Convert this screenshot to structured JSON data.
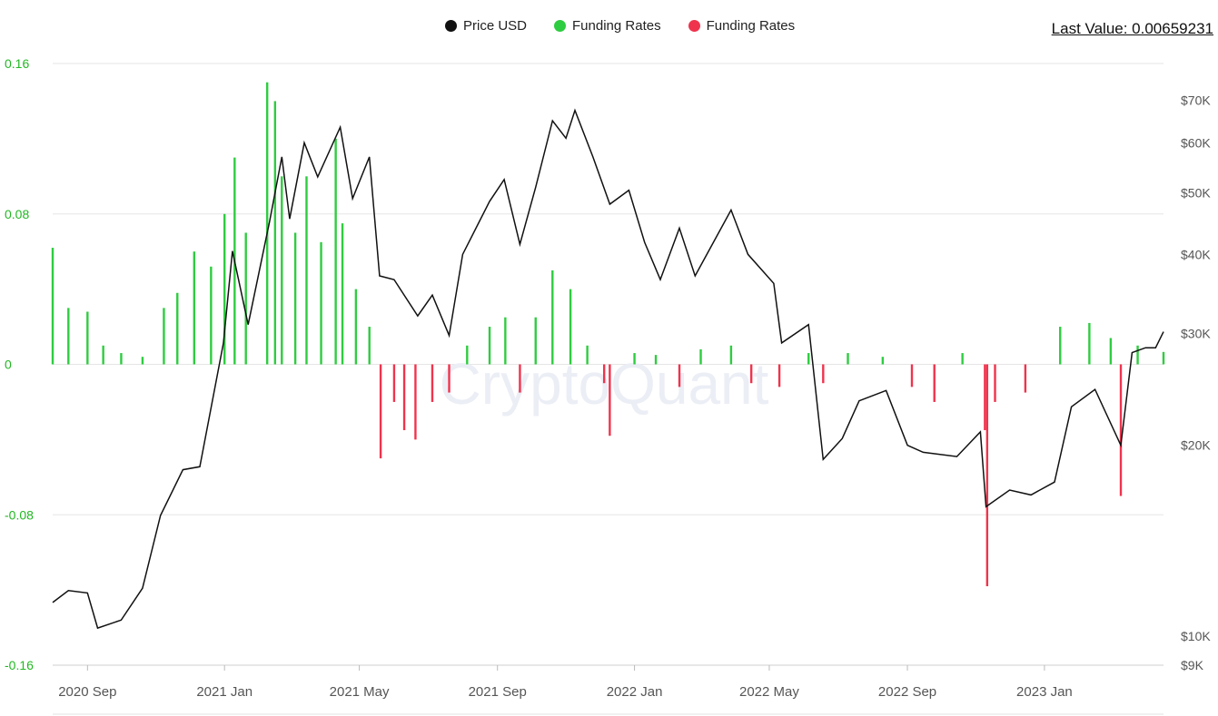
{
  "legend": [
    {
      "label": "Price USD",
      "color": "#111111"
    },
    {
      "label": "Funding Rates",
      "color": "#2ecc40"
    },
    {
      "label": "Funding Rates",
      "color": "#f0334d"
    }
  ],
  "last_value": "Last Value: 0.00659231",
  "chart_data": {
    "type": "bar",
    "title": "",
    "watermark": "CryptoQuant",
    "xlabel": "",
    "ylabel": "",
    "x_ticks": [
      "2020 Sep",
      "2021 Jan",
      "2021 May",
      "2021 Sep",
      "2022 Jan",
      "2022 May",
      "2022 Sep",
      "2023 Jan"
    ],
    "x_range": [
      "2020-08-01",
      "2023-04-17"
    ],
    "y_left": {
      "ticks": [
        "0.16",
        "0.08",
        "0",
        "-0.08",
        "-0.16"
      ],
      "tick_values": [
        0.16,
        0.08,
        0,
        -0.08,
        -0.16
      ],
      "ylim": [
        -0.16,
        0.16
      ]
    },
    "y_right": {
      "scale": "log",
      "ticks": [
        "$70K",
        "$60K",
        "$50K",
        "$40K",
        "$30K",
        "$20K",
        "$10K",
        "$9K"
      ],
      "tick_values": [
        70000,
        60000,
        50000,
        40000,
        30000,
        20000,
        10000,
        9000
      ],
      "ylim": [
        9000,
        80000
      ]
    },
    "grid": true,
    "legend_position": "top",
    "series": [
      {
        "name": "Price USD",
        "type": "line",
        "axis": "right",
        "color": "#111111",
        "points": [
          [
            "2020-08-01",
            11300
          ],
          [
            "2020-08-15",
            11800
          ],
          [
            "2020-09-01",
            11700
          ],
          [
            "2020-09-10",
            10300
          ],
          [
            "2020-10-01",
            10600
          ],
          [
            "2020-10-20",
            11900
          ],
          [
            "2020-11-05",
            15500
          ],
          [
            "2020-11-25",
            18300
          ],
          [
            "2020-12-10",
            18500
          ],
          [
            "2020-12-31",
            29000
          ],
          [
            "2021-01-08",
            40500
          ],
          [
            "2021-01-22",
            31000
          ],
          [
            "2021-02-10",
            45000
          ],
          [
            "2021-02-21",
            57000
          ],
          [
            "2021-02-28",
            45500
          ],
          [
            "2021-03-13",
            60000
          ],
          [
            "2021-03-25",
            53000
          ],
          [
            "2021-04-14",
            63500
          ],
          [
            "2021-04-25",
            49000
          ],
          [
            "2021-05-10",
            57000
          ],
          [
            "2021-05-19",
            37000
          ],
          [
            "2021-06-01",
            36500
          ],
          [
            "2021-06-22",
            32000
          ],
          [
            "2021-07-05",
            34500
          ],
          [
            "2021-07-20",
            29800
          ],
          [
            "2021-08-01",
            40000
          ],
          [
            "2021-08-25",
            48500
          ],
          [
            "2021-09-07",
            52500
          ],
          [
            "2021-09-21",
            41500
          ],
          [
            "2021-10-05",
            51000
          ],
          [
            "2021-10-20",
            65000
          ],
          [
            "2021-11-01",
            61000
          ],
          [
            "2021-11-09",
            67500
          ],
          [
            "2021-11-25",
            57000
          ],
          [
            "2021-12-10",
            48000
          ],
          [
            "2021-12-27",
            50500
          ],
          [
            "2022-01-10",
            41800
          ],
          [
            "2022-01-24",
            36500
          ],
          [
            "2022-02-10",
            44000
          ],
          [
            "2022-02-24",
            37000
          ],
          [
            "2022-03-28",
            47000
          ],
          [
            "2022-04-12",
            40000
          ],
          [
            "2022-05-05",
            36000
          ],
          [
            "2022-05-12",
            29000
          ],
          [
            "2022-06-05",
            31000
          ],
          [
            "2022-06-18",
            19000
          ],
          [
            "2022-07-05",
            20500
          ],
          [
            "2022-07-20",
            23500
          ],
          [
            "2022-08-13",
            24400
          ],
          [
            "2022-09-01",
            20000
          ],
          [
            "2022-09-15",
            19500
          ],
          [
            "2022-10-15",
            19200
          ],
          [
            "2022-11-05",
            21000
          ],
          [
            "2022-11-10",
            16000
          ],
          [
            "2022-12-01",
            17000
          ],
          [
            "2022-12-20",
            16700
          ],
          [
            "2023-01-10",
            17500
          ],
          [
            "2023-01-25",
            23000
          ],
          [
            "2023-02-15",
            24500
          ],
          [
            "2023-03-10",
            20000
          ],
          [
            "2023-03-20",
            28000
          ],
          [
            "2023-04-01",
            28500
          ],
          [
            "2023-04-10",
            28500
          ],
          [
            "2023-04-17",
            30200
          ]
        ]
      },
      {
        "name": "Funding Rates",
        "type": "bar",
        "axis": "left",
        "positive_color": "#2ecc40",
        "negative_color": "#f0334d",
        "points": [
          [
            "2020-08-01",
            0.062
          ],
          [
            "2020-08-15",
            0.03
          ],
          [
            "2020-09-01",
            0.028
          ],
          [
            "2020-09-15",
            0.01
          ],
          [
            "2020-10-01",
            0.006
          ],
          [
            "2020-10-20",
            0.004
          ],
          [
            "2020-11-08",
            0.03
          ],
          [
            "2020-11-20",
            0.038
          ],
          [
            "2020-12-05",
            0.06
          ],
          [
            "2020-12-20",
            0.052
          ],
          [
            "2021-01-01",
            0.08
          ],
          [
            "2021-01-10",
            0.11
          ],
          [
            "2021-01-20",
            0.07
          ],
          [
            "2021-02-08",
            0.15
          ],
          [
            "2021-02-15",
            0.14
          ],
          [
            "2021-02-21",
            0.1
          ],
          [
            "2021-03-05",
            0.07
          ],
          [
            "2021-03-15",
            0.1
          ],
          [
            "2021-03-28",
            0.065
          ],
          [
            "2021-04-10",
            0.12
          ],
          [
            "2021-04-16",
            0.075
          ],
          [
            "2021-04-28",
            0.04
          ],
          [
            "2021-05-10",
            0.02
          ],
          [
            "2021-05-20",
            -0.05
          ],
          [
            "2021-06-01",
            -0.02
          ],
          [
            "2021-06-10",
            -0.035
          ],
          [
            "2021-06-20",
            -0.04
          ],
          [
            "2021-07-05",
            -0.02
          ],
          [
            "2021-07-20",
            -0.015
          ],
          [
            "2021-08-05",
            0.01
          ],
          [
            "2021-08-25",
            0.02
          ],
          [
            "2021-09-08",
            0.025
          ],
          [
            "2021-09-21",
            -0.015
          ],
          [
            "2021-10-05",
            0.025
          ],
          [
            "2021-10-20",
            0.05
          ],
          [
            "2021-11-05",
            0.04
          ],
          [
            "2021-11-20",
            0.01
          ],
          [
            "2021-12-05",
            -0.01
          ],
          [
            "2021-12-10",
            -0.038
          ],
          [
            "2022-01-01",
            0.006
          ],
          [
            "2022-01-20",
            0.005
          ],
          [
            "2022-02-10",
            -0.012
          ],
          [
            "2022-03-01",
            0.008
          ],
          [
            "2022-03-28",
            0.01
          ],
          [
            "2022-04-15",
            -0.01
          ],
          [
            "2022-05-10",
            -0.012
          ],
          [
            "2022-06-05",
            0.006
          ],
          [
            "2022-06-18",
            -0.01
          ],
          [
            "2022-07-10",
            0.006
          ],
          [
            "2022-08-10",
            0.004
          ],
          [
            "2022-09-05",
            -0.012
          ],
          [
            "2022-09-25",
            -0.02
          ],
          [
            "2022-10-20",
            0.006
          ],
          [
            "2022-11-09",
            -0.035
          ],
          [
            "2022-11-11",
            -0.118
          ],
          [
            "2022-11-18",
            -0.02
          ],
          [
            "2022-12-15",
            -0.015
          ],
          [
            "2023-01-15",
            0.02
          ],
          [
            "2023-02-10",
            0.022
          ],
          [
            "2023-03-01",
            0.014
          ],
          [
            "2023-03-10",
            -0.07
          ],
          [
            "2023-03-25",
            0.01
          ],
          [
            "2023-04-17",
            0.0066
          ]
        ]
      }
    ]
  }
}
